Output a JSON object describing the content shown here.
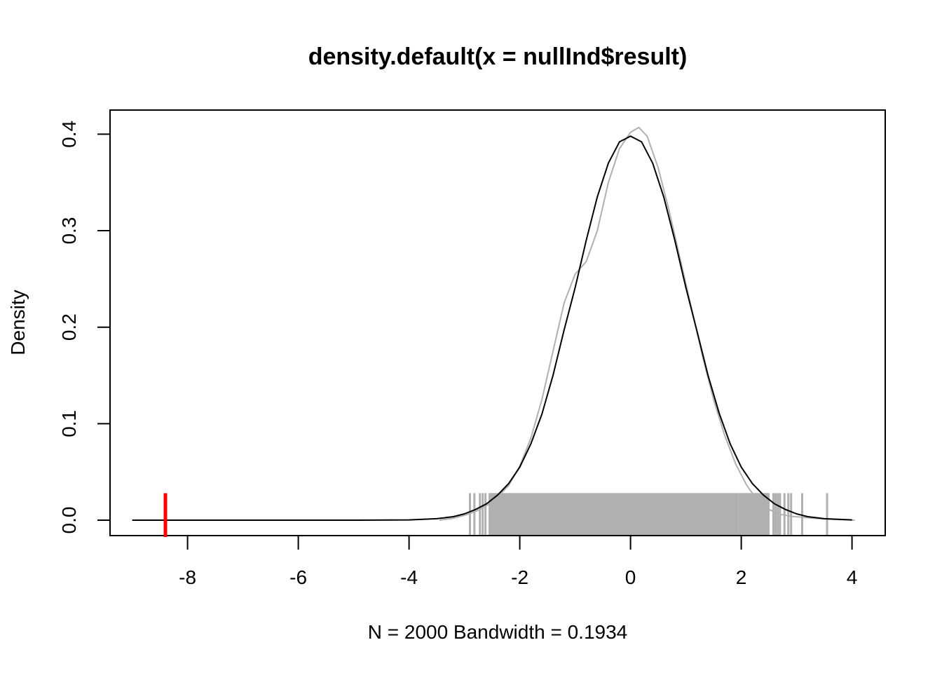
{
  "chart_data": {
    "type": "line",
    "title": "density.default(x = nullInd$result)",
    "xlabel": "N = 2000   Bandwidth = 0.1934",
    "ylabel": "Density",
    "xlim": [
      -9.4,
      4.6
    ],
    "ylim": [
      -0.016,
      0.425
    ],
    "x_ticks": [
      -8,
      -6,
      -4,
      -2,
      0,
      2,
      4
    ],
    "y_ticks": [
      0.0,
      0.1,
      0.2,
      0.3,
      0.4
    ],
    "grid": false,
    "legend": "none",
    "series": [
      {
        "color": "#000000",
        "x": [
          -9.0,
          -5.0,
          -4.0,
          -3.5,
          -3.2,
          -3.0,
          -2.8,
          -2.6,
          -2.4,
          -2.2,
          -2.0,
          -1.8,
          -1.6,
          -1.4,
          -1.2,
          -1.0,
          -0.8,
          -0.6,
          -0.4,
          -0.2,
          0.0,
          0.2,
          0.4,
          0.6,
          0.8,
          1.0,
          1.2,
          1.4,
          1.6,
          1.8,
          2.0,
          2.2,
          2.4,
          2.6,
          2.8,
          3.0,
          3.2,
          3.5,
          4.0
        ],
        "y": [
          0.0,
          0.0,
          0.0003,
          0.0015,
          0.0036,
          0.0065,
          0.011,
          0.017,
          0.026,
          0.038,
          0.055,
          0.079,
          0.11,
          0.15,
          0.197,
          0.241,
          0.29,
          0.335,
          0.37,
          0.392,
          0.398,
          0.392,
          0.37,
          0.335,
          0.29,
          0.241,
          0.196,
          0.15,
          0.111,
          0.079,
          0.055,
          0.038,
          0.026,
          0.017,
          0.011,
          0.0065,
          0.0036,
          0.0015,
          0.0003
        ]
      },
      {
        "color": "#b0b0b0",
        "x": [
          -3.45,
          -3.2,
          -3.0,
          -2.8,
          -2.6,
          -2.4,
          -2.2,
          -2.0,
          -1.8,
          -1.6,
          -1.4,
          -1.2,
          -1.0,
          -0.8,
          -0.6,
          -0.4,
          -0.2,
          0.0,
          0.15,
          0.3,
          0.5,
          0.7,
          0.9,
          1.1,
          1.3,
          1.5,
          1.7,
          1.9,
          2.1,
          2.3,
          2.5,
          2.7,
          2.9,
          3.1,
          3.3,
          3.6,
          4.05
        ],
        "y": [
          0.0,
          0.002,
          0.005,
          0.009,
          0.015,
          0.024,
          0.036,
          0.056,
          0.085,
          0.125,
          0.175,
          0.225,
          0.255,
          0.268,
          0.3,
          0.35,
          0.385,
          0.402,
          0.407,
          0.398,
          0.365,
          0.32,
          0.27,
          0.22,
          0.17,
          0.125,
          0.088,
          0.058,
          0.036,
          0.02,
          0.011,
          0.006,
          0.004,
          0.003,
          0.002,
          0.001,
          0.0
        ]
      }
    ],
    "rug": {
      "color": "#b0b0b0",
      "height": 0.028,
      "dense_range": [
        -2.55,
        2.5
      ],
      "gaps": [
        -2.28,
        1.95
      ],
      "sparse_points": [
        -2.9,
        -2.82,
        -2.72,
        -2.67,
        -2.62,
        2.58,
        2.62,
        2.66,
        2.7,
        2.78,
        2.85,
        2.9,
        3.1,
        3.55
      ]
    },
    "observed": {
      "x": -8.4,
      "color": "#ff0000",
      "height": 0.028
    }
  }
}
